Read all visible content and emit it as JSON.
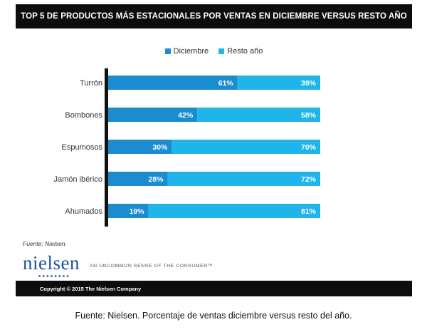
{
  "title": "TOP 5 DE PRODUCTOS MÁS ESTACIONALES POR VENTAS EN DICIEMBRE VERSUS RESTO AÑO",
  "source_note": "Fuente: Nielsen.",
  "logo_text": "nielsen",
  "tagline": "AN UNCOMMON SENSE OF THE CONSUMER™",
  "copyright": "Copyright © 2015 The Nielsen Company",
  "caption": "Fuente: Nielsen. Porcentaje de ventas diciembre versus resto del año.",
  "colors": {
    "diciembre": "#1b8ccf",
    "resto": "#1fb5ea",
    "title_bar": "#0d0d0d",
    "logo": "#1e4f9e"
  },
  "chart_data": {
    "type": "bar",
    "orientation": "horizontal",
    "stacked": true,
    "categories": [
      "Turrón",
      "Bombones",
      "Espumosos",
      "Jamón ibérico",
      "Ahumados"
    ],
    "series": [
      {
        "name": "Diciembre",
        "values": [
          61,
          42,
          30,
          28,
          19
        ],
        "labels": [
          "61%",
          "42%",
          "30%",
          "28%",
          "19%"
        ]
      },
      {
        "name": "Resto año",
        "values": [
          39,
          58,
          70,
          72,
          81
        ],
        "labels": [
          "39%",
          "58%",
          "70%",
          "72%",
          "81%"
        ]
      }
    ],
    "xlim": [
      0,
      100
    ],
    "legend_position": "top-center",
    "grid": false
  }
}
